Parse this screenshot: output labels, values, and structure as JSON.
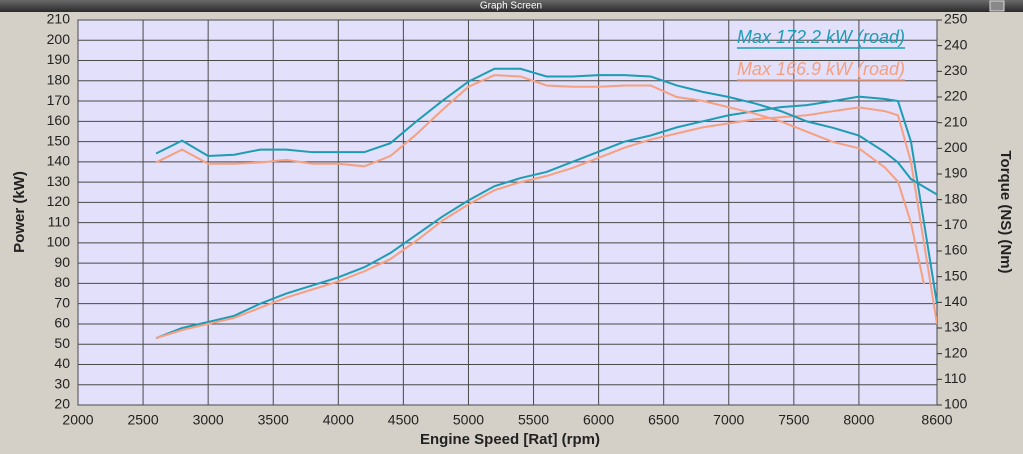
{
  "window_title": "Graph Screen",
  "chart_data": {
    "type": "line",
    "x_label": "Engine Speed [Rat] (rpm)",
    "y_label": "Power (kW)",
    "y2_label": "Torque (NS) (Nm)",
    "annotations": [
      {
        "text": "Max 172.2 kW (road)",
        "color": "#1e9cb3"
      },
      {
        "text": "Max 166.9 kW (road)",
        "color": "#f5a080"
      }
    ],
    "x": [
      2600,
      2800,
      3000,
      3200,
      3400,
      3600,
      3800,
      4000,
      4200,
      4400,
      4600,
      4800,
      5000,
      5200,
      5400,
      5600,
      5800,
      6000,
      6200,
      6400,
      6600,
      6800,
      7000,
      7200,
      7400,
      7600,
      7800,
      8000,
      8200,
      8300,
      8400,
      8500,
      8600
    ],
    "series": [
      {
        "color": "#1e9cb3",
        "values": [
          53,
          58,
          61,
          64,
          70,
          75,
          79,
          83,
          88,
          95,
          104,
          113,
          121,
          128,
          132,
          135,
          140,
          145,
          150,
          153,
          157,
          160,
          163,
          165,
          167,
          168,
          170,
          172.2,
          171,
          170,
          150,
          110,
          70
        ]
      },
      {
        "color": "#f5a080",
        "values": [
          53,
          57,
          60,
          63,
          68,
          73,
          77,
          81,
          86,
          92,
          101,
          111,
          119,
          126,
          130,
          133,
          137,
          142,
          147,
          151,
          154,
          157,
          159,
          161,
          162,
          163,
          165,
          166.9,
          165,
          163,
          140,
          100,
          60
        ]
      },
      {
        "color": "#1e9cb3",
        "axis": "y2",
        "values": [
          198,
          203,
          197,
          197.5,
          199.5,
          199.5,
          198.5,
          198.5,
          198.5,
          202,
          210.5,
          218.5,
          226,
          231,
          231,
          228,
          228,
          228.5,
          228.5,
          228,
          224.5,
          222,
          220,
          217.5,
          214.5,
          210.5,
          208,
          205,
          198.5,
          194.5,
          188,
          185,
          182
        ]
      },
      {
        "color": "#f5a080",
        "axis": "y2",
        "values": [
          194.5,
          199.5,
          194,
          194,
          194.5,
          195.5,
          194,
          194,
          193,
          197,
          205.5,
          215,
          224,
          228.5,
          228,
          224.5,
          224,
          224,
          224.5,
          224.5,
          220,
          218.5,
          216,
          213.5,
          210.5,
          206.5,
          202.5,
          200,
          192.5,
          187,
          171,
          147,
          null
        ]
      }
    ],
    "xlim": [
      2000,
      8600
    ],
    "xticks": [
      2000,
      2500,
      3000,
      3500,
      4000,
      4500,
      5000,
      5500,
      6000,
      6500,
      7000,
      7500,
      8000,
      8600
    ],
    "ylim": [
      20,
      210
    ],
    "yticks": [
      20,
      30,
      40,
      50,
      60,
      70,
      80,
      90,
      100,
      110,
      120,
      130,
      140,
      150,
      160,
      170,
      180,
      190,
      200,
      210
    ],
    "y2lim": [
      100,
      250
    ],
    "y2ticks": [
      100,
      110,
      120,
      130,
      140,
      150,
      160,
      170,
      180,
      190,
      200,
      210,
      220,
      230,
      240,
      250
    ],
    "grid": true,
    "background": "#e2e0fa"
  }
}
